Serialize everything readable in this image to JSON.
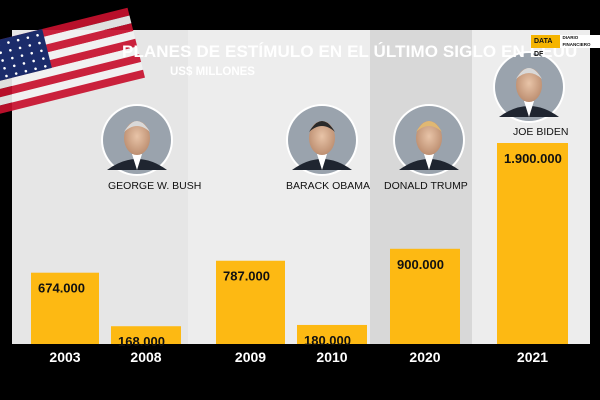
{
  "title": "PLANES DE ESTÍMULO EN EL ÚLTIMO SIGLO EN EEUU",
  "subtitle": "US$ MILLONES",
  "brand": {
    "primary": "DATA DF",
    "secondary": "DIARIO FINANCIERO"
  },
  "flag_icon": "us-flag-icon",
  "chart_data": {
    "type": "bar",
    "title": "PLANES DE ESTÍMULO EN EL ÚLTIMO SIGLO EN EEUU",
    "ylabel": "US$ MILLONES",
    "xlabel": "",
    "categories": [
      "2003",
      "2008",
      "2009",
      "2010",
      "2020",
      "2021"
    ],
    "values": [
      674000,
      168000,
      787000,
      180000,
      900000,
      1900000
    ],
    "value_labels": [
      "674.000",
      "168.000",
      "787.000",
      "180.000",
      "900.000",
      "1.900.000"
    ],
    "ylim": [
      0,
      1900000
    ],
    "grid": false,
    "bar_color": "#FDB913",
    "groups": [
      {
        "name": "GEORGE W. BUSH",
        "categories": [
          "2003",
          "2008"
        ]
      },
      {
        "name": "BARACK OBAMA",
        "categories": [
          "2009",
          "2010"
        ]
      },
      {
        "name": "DONALD TRUMP",
        "categories": [
          "2020"
        ]
      },
      {
        "name": "JOE BIDEN",
        "categories": [
          "2021"
        ]
      }
    ]
  }
}
